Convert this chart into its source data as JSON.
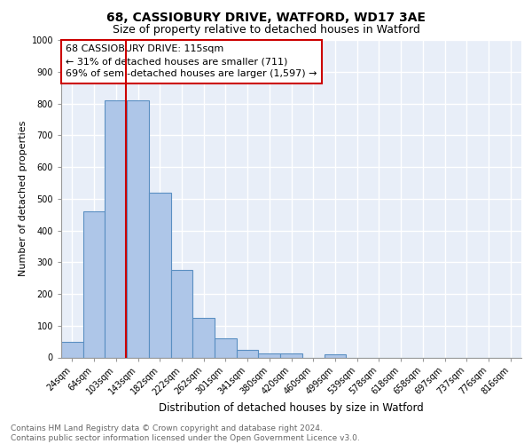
{
  "title1": "68, CASSIOBURY DRIVE, WATFORD, WD17 3AE",
  "title2": "Size of property relative to detached houses in Watford",
  "xlabel": "Distribution of detached houses by size in Watford",
  "ylabel": "Number of detached properties",
  "bin_labels": [
    "24sqm",
    "64sqm",
    "103sqm",
    "143sqm",
    "182sqm",
    "222sqm",
    "262sqm",
    "301sqm",
    "341sqm",
    "380sqm",
    "420sqm",
    "460sqm",
    "499sqm",
    "539sqm",
    "578sqm",
    "618sqm",
    "658sqm",
    "697sqm",
    "737sqm",
    "776sqm",
    "816sqm"
  ],
  "bar_values": [
    50,
    460,
    810,
    810,
    520,
    275,
    125,
    60,
    25,
    12,
    12,
    0,
    10,
    0,
    0,
    0,
    0,
    0,
    0,
    0,
    0
  ],
  "bar_color": "#aec6e8",
  "bar_edge_color": "#5a8fc2",
  "bar_edge_width": 0.8,
  "vline_color": "#cc0000",
  "annotation_box_text": "68 CASSIOBURY DRIVE: 115sqm\n← 31% of detached houses are smaller (711)\n69% of semi-detached houses are larger (1,597) →",
  "annotation_box_color": "#cc0000",
  "ylim": [
    0,
    1000
  ],
  "yticks": [
    0,
    100,
    200,
    300,
    400,
    500,
    600,
    700,
    800,
    900,
    1000
  ],
  "background_color": "#e8eef8",
  "footer_text": "Contains HM Land Registry data © Crown copyright and database right 2024.\nContains public sector information licensed under the Open Government Licence v3.0.",
  "title1_fontsize": 10,
  "title2_fontsize": 9,
  "xlabel_fontsize": 8.5,
  "ylabel_fontsize": 8,
  "tick_fontsize": 7,
  "annotation_fontsize": 8,
  "footer_fontsize": 6.5
}
